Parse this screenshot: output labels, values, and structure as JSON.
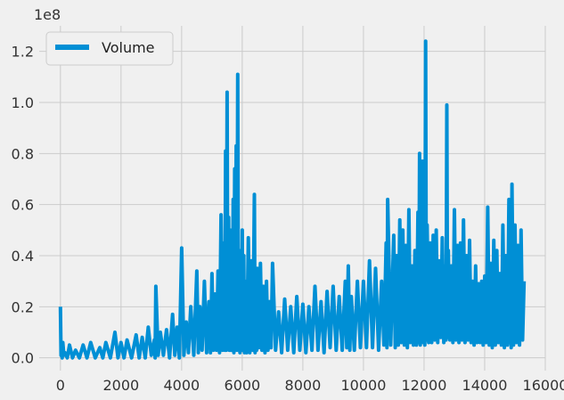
{
  "chart_data": {
    "type": "line",
    "title": "",
    "xlabel": "",
    "ylabel": "",
    "y_offset_label": "1e8",
    "xlim": [
      -700,
      16000
    ],
    "ylim": [
      -0.05,
      1.3
    ],
    "x_ticks": [
      0,
      2000,
      4000,
      6000,
      8000,
      10000,
      12000,
      14000,
      16000
    ],
    "x_tick_labels": [
      "0",
      "2000",
      "4000",
      "6000",
      "8000",
      "10000",
      "12000",
      "14000",
      "16000"
    ],
    "y_ticks": [
      0.0,
      0.2,
      0.4,
      0.6,
      0.8,
      1.0,
      1.2
    ],
    "y_tick_labels": [
      "0.0",
      "0.2",
      "0.4",
      "0.6",
      "0.8",
      "1.0",
      "1.2"
    ],
    "grid": true,
    "legend": {
      "position": "top-left"
    },
    "series": [
      {
        "name": "Volume",
        "color": "#008fd5",
        "x": [
          0,
          40,
          80,
          150,
          300,
          500,
          750,
          1000,
          1300,
          1500,
          1800,
          2000,
          2200,
          2500,
          2700,
          2900,
          3100,
          3150,
          3300,
          3500,
          3700,
          3850,
          4000,
          4150,
          4300,
          4500,
          4600,
          4750,
          4900,
          5000,
          5100,
          5200,
          5300,
          5400,
          5450,
          5500,
          5550,
          5600,
          5650,
          5700,
          5750,
          5800,
          5850,
          5900,
          5950,
          6000,
          6050,
          6100,
          6200,
          6300,
          6400,
          6450,
          6500,
          6600,
          6700,
          6800,
          6900,
          7000,
          7200,
          7400,
          7600,
          7800,
          8000,
          8200,
          8400,
          8600,
          8800,
          9000,
          9200,
          9400,
          9500,
          9600,
          9800,
          10000,
          10200,
          10400,
          10600,
          10750,
          10800,
          11000,
          11100,
          11200,
          11300,
          11400,
          11500,
          11600,
          11700,
          11800,
          11850,
          11900,
          11950,
          12000,
          12050,
          12100,
          12200,
          12300,
          12400,
          12500,
          12600,
          12700,
          12750,
          12800,
          12900,
          13000,
          13100,
          13200,
          13300,
          13400,
          13500,
          13600,
          13700,
          13800,
          13900,
          14000,
          14100,
          14200,
          14300,
          14400,
          14500,
          14600,
          14700,
          14800,
          14850,
          14900,
          15000,
          15100,
          15200,
          15300
        ],
        "y": [
          0.2,
          0.02,
          0.06,
          0.02,
          0.05,
          0.03,
          0.05,
          0.06,
          0.04,
          0.06,
          0.1,
          0.06,
          0.07,
          0.09,
          0.08,
          0.12,
          0.07,
          0.28,
          0.1,
          0.11,
          0.17,
          0.12,
          0.43,
          0.14,
          0.2,
          0.34,
          0.2,
          0.3,
          0.22,
          0.33,
          0.25,
          0.34,
          0.56,
          0.45,
          0.81,
          1.04,
          0.55,
          0.5,
          0.46,
          0.62,
          0.74,
          0.83,
          1.11,
          0.42,
          0.36,
          0.5,
          0.4,
          0.3,
          0.47,
          0.38,
          0.64,
          0.3,
          0.35,
          0.37,
          0.28,
          0.3,
          0.22,
          0.37,
          0.18,
          0.23,
          0.2,
          0.24,
          0.21,
          0.2,
          0.28,
          0.22,
          0.26,
          0.28,
          0.24,
          0.3,
          0.36,
          0.24,
          0.3,
          0.3,
          0.38,
          0.35,
          0.3,
          0.45,
          0.62,
          0.48,
          0.4,
          0.54,
          0.5,
          0.44,
          0.58,
          0.36,
          0.42,
          0.57,
          0.8,
          0.62,
          0.77,
          0.48,
          1.24,
          0.52,
          0.45,
          0.48,
          0.5,
          0.38,
          0.47,
          0.36,
          0.99,
          0.42,
          0.36,
          0.58,
          0.44,
          0.45,
          0.54,
          0.4,
          0.46,
          0.3,
          0.36,
          0.29,
          0.3,
          0.32,
          0.59,
          0.37,
          0.46,
          0.42,
          0.33,
          0.52,
          0.4,
          0.62,
          0.5,
          0.68,
          0.52,
          0.44,
          0.5,
          0.3
        ],
        "y_low": [
          0.01,
          0.0,
          0.01,
          0.0,
          0.0,
          0.0,
          0.0,
          0.0,
          0.0,
          0.0,
          0.0,
          0.0,
          0.0,
          0.0,
          0.0,
          0.01,
          0.0,
          0.01,
          0.01,
          0.0,
          0.01,
          0.0,
          0.01,
          0.02,
          0.01,
          0.02,
          0.03,
          0.02,
          0.02,
          0.03,
          0.03,
          0.02,
          0.03,
          0.03,
          0.03,
          0.04,
          0.03,
          0.03,
          0.03,
          0.02,
          0.04,
          0.03,
          0.05,
          0.02,
          0.03,
          0.03,
          0.02,
          0.02,
          0.02,
          0.03,
          0.02,
          0.03,
          0.04,
          0.03,
          0.02,
          0.03,
          0.04,
          0.03,
          0.02,
          0.03,
          0.02,
          0.03,
          0.02,
          0.03,
          0.03,
          0.02,
          0.04,
          0.03,
          0.03,
          0.04,
          0.03,
          0.03,
          0.04,
          0.04,
          0.04,
          0.03,
          0.05,
          0.04,
          0.05,
          0.04,
          0.05,
          0.06,
          0.05,
          0.04,
          0.06,
          0.05,
          0.05,
          0.06,
          0.05,
          0.07,
          0.06,
          0.05,
          0.07,
          0.06,
          0.06,
          0.07,
          0.06,
          0.08,
          0.06,
          0.07,
          0.08,
          0.07,
          0.06,
          0.07,
          0.06,
          0.07,
          0.06,
          0.07,
          0.06,
          0.05,
          0.06,
          0.06,
          0.05,
          0.06,
          0.05,
          0.04,
          0.05,
          0.06,
          0.05,
          0.04,
          0.05,
          0.06,
          0.04,
          0.05,
          0.06,
          0.05,
          0.07,
          0.08
        ]
      }
    ]
  }
}
